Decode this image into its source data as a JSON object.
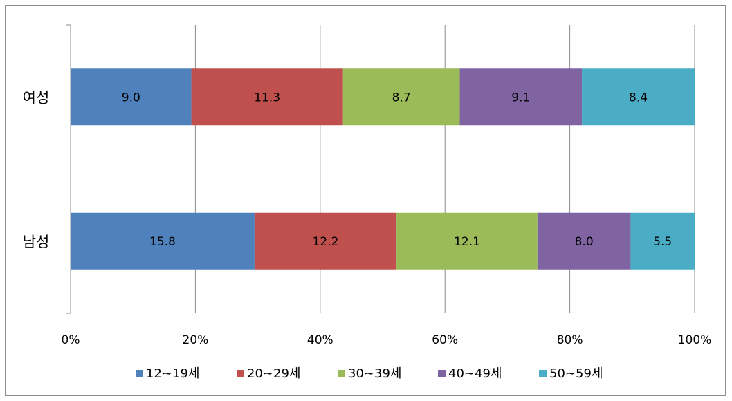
{
  "chart_data": {
    "type": "bar",
    "orientation": "horizontal",
    "stacked": "percent",
    "categories": [
      "여성",
      "남성"
    ],
    "series": [
      {
        "name": "12~19세",
        "values": [
          9.0,
          15.8
        ],
        "color": "#4f81bd"
      },
      {
        "name": "20~29세",
        "values": [
          11.3,
          12.2
        ],
        "color": "#c0504d"
      },
      {
        "name": "30~39세",
        "values": [
          8.7,
          12.1
        ],
        "color": "#9bbb59"
      },
      {
        "name": "40~49세",
        "values": [
          9.1,
          8.0
        ],
        "color": "#8064a2"
      },
      {
        "name": "50~59세",
        "values": [
          8.4,
          5.5
        ],
        "color": "#4bacc6"
      }
    ],
    "xticks": [
      "0%",
      "20%",
      "40%",
      "60%",
      "80%",
      "100%"
    ],
    "xlim": [
      0,
      100
    ],
    "grid": true,
    "legend_position": "bottom"
  }
}
